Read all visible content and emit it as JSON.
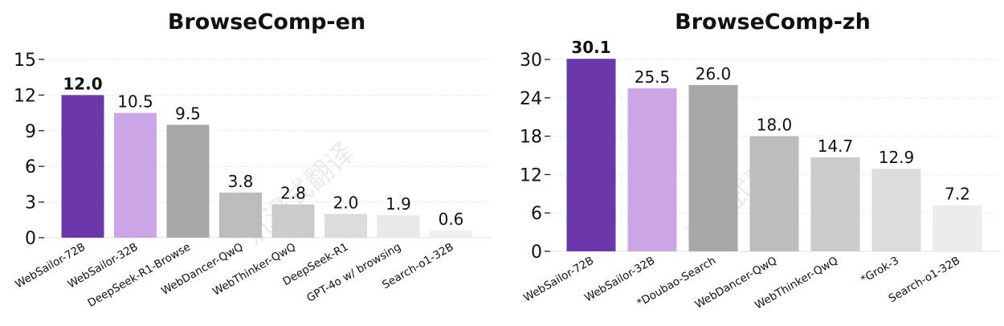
{
  "watermark_text": "沉浸式翻译",
  "chart_data": [
    {
      "type": "bar",
      "title": "BrowseComp-en",
      "xlabel": "",
      "ylabel": "",
      "categories": [
        "WebSailor-72B",
        "WebSailor-32B",
        "DeepSeek-R1-Browse",
        "WebDancer-QwQ",
        "WebThinker-QwQ",
        "DeepSeek-R1",
        "GPT-4o w/ browsing",
        "Search-o1-32B"
      ],
      "values": [
        12.0,
        10.5,
        9.5,
        3.8,
        2.8,
        2.0,
        1.9,
        0.6
      ],
      "value_labels": [
        "12.0",
        "10.5",
        "9.5",
        "3.8",
        "2.8",
        "2.0",
        "1.9",
        "0.6"
      ],
      "bold_value_index": 0,
      "colors": [
        "#6a38a8",
        "#cda6e8",
        "#a8a8a8",
        "#bcbcbc",
        "#cccccc",
        "#dcdcdc",
        "#e8e8e8",
        "#efefef"
      ],
      "ylim": [
        0,
        15
      ],
      "yticks": [
        0,
        3,
        6,
        9,
        12,
        15
      ],
      "ytick_labels": [
        "0",
        "3",
        "6",
        "9",
        "12",
        "15"
      ],
      "grid": true
    },
    {
      "type": "bar",
      "title": "BrowseComp-zh",
      "xlabel": "",
      "ylabel": "",
      "categories": [
        "WebSailor-72B",
        "WebSailor-32B",
        "*Doubao-Search",
        "WebDancer-QwQ",
        "WebThinker-QwQ",
        "*Grok-3",
        "Search-o1-32B"
      ],
      "values": [
        30.1,
        25.5,
        26.0,
        18.0,
        14.7,
        12.9,
        7.2
      ],
      "value_labels": [
        "30.1",
        "25.5",
        "26.0",
        "18.0",
        "14.7",
        "12.9",
        "7.2"
      ],
      "bold_value_index": 0,
      "colors": [
        "#6a38a8",
        "#cda6e8",
        "#a8a8a8",
        "#bcbcbc",
        "#cccccc",
        "#dcdcdc",
        "#ececec"
      ],
      "ylim": [
        0,
        30
      ],
      "yticks": [
        0,
        6,
        12,
        18,
        24,
        30
      ],
      "ytick_labels": [
        "0",
        "6",
        "12",
        "18",
        "24",
        "30"
      ],
      "grid": true
    }
  ]
}
